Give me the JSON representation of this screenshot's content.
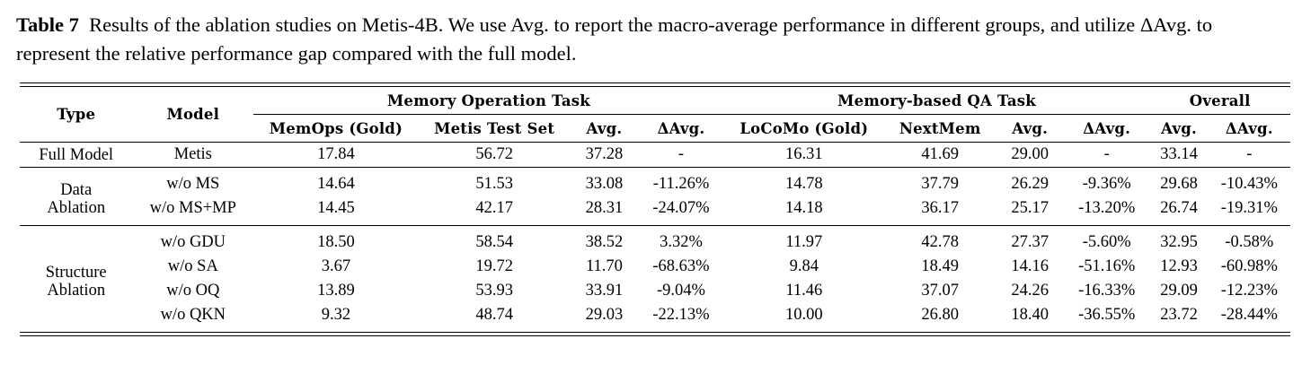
{
  "caption": {
    "label": "Table 7",
    "text": "Results of the ablation studies on Metis-4B. We use Avg. to report the macro-average performance in different groups, and utilize ΔAvg. to represent the relative performance gap compared with the full model."
  },
  "table": {
    "header_type": "Type",
    "header_model": "Model",
    "groups": [
      "Memory Operation Task",
      "Memory-based QA Task",
      "Overall"
    ],
    "subheaders": [
      "MemOps (Gold)",
      "Metis Test Set",
      "Avg.",
      "ΔAvg.",
      "LoCoMo (Gold)",
      "NextMem",
      "Avg.",
      "ΔAvg.",
      "Avg.",
      "ΔAvg."
    ],
    "sections": [
      {
        "type_lines": [
          "Full Model"
        ],
        "rows": [
          {
            "model": "Metis",
            "values": [
              "17.84",
              "56.72",
              "37.28",
              "-",
              "16.31",
              "41.69",
              "29.00",
              "-",
              "33.14",
              "-"
            ]
          }
        ]
      },
      {
        "type_lines": [
          "Data",
          "Ablation"
        ],
        "rows": [
          {
            "model": "w/o MS",
            "values": [
              "14.64",
              "51.53",
              "33.08",
              "-11.26%",
              "14.78",
              "37.79",
              "26.29",
              "-9.36%",
              "29.68",
              "-10.43%"
            ]
          },
          {
            "model": "w/o MS+MP",
            "values": [
              "14.45",
              "42.17",
              "28.31",
              "-24.07%",
              "14.18",
              "36.17",
              "25.17",
              "-13.20%",
              "26.74",
              "-19.31%"
            ]
          }
        ]
      },
      {
        "type_lines": [
          "Structure",
          "Ablation"
        ],
        "rows": [
          {
            "model": "w/o GDU",
            "values": [
              "18.50",
              "58.54",
              "38.52",
              "3.32%",
              "11.97",
              "42.78",
              "27.37",
              "-5.60%",
              "32.95",
              "-0.58%"
            ]
          },
          {
            "model": "w/o SA",
            "values": [
              "3.67",
              "19.72",
              "11.70",
              "-68.63%",
              "9.84",
              "18.49",
              "14.16",
              "-51.16%",
              "12.93",
              "-60.98%"
            ]
          },
          {
            "model": "w/o OQ",
            "values": [
              "13.89",
              "53.93",
              "33.91",
              "-9.04%",
              "11.46",
              "37.07",
              "24.26",
              "-16.33%",
              "29.09",
              "-12.23%"
            ]
          },
          {
            "model": "w/o QKN",
            "values": [
              "9.32",
              "48.74",
              "29.03",
              "-22.13%",
              "10.00",
              "26.80",
              "18.40",
              "-36.55%",
              "23.72",
              "-28.44%"
            ]
          }
        ]
      }
    ]
  }
}
